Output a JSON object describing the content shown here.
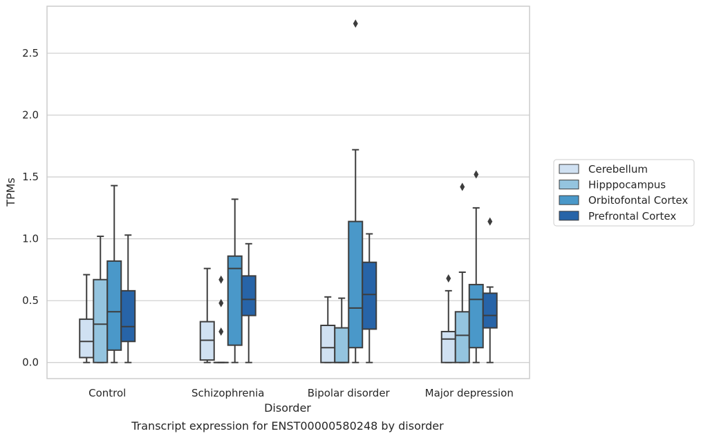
{
  "chart_data": {
    "type": "box",
    "title": "",
    "caption": "Transcript expression for ENST00000580248 by disorder",
    "xlabel": "Disorder",
    "ylabel": "TPMs",
    "ylim": [
      -0.13,
      2.88
    ],
    "yticks": [
      0.0,
      0.5,
      1.0,
      1.5,
      2.0,
      2.5
    ],
    "ytick_labels": [
      "0.0",
      "0.5",
      "1.0",
      "1.5",
      "2.0",
      "2.5"
    ],
    "grid": "horizontal",
    "legend_position": "right",
    "categories": [
      "Control",
      "Schizophrenia",
      "Bipolar disorder",
      "Major depression"
    ],
    "series": [
      {
        "name": "Cerebellum",
        "color": "#d0e1f2",
        "boxes": [
          {
            "whisker_low": 0.0,
            "q1": 0.04,
            "median": 0.17,
            "q3": 0.35,
            "whisker_high": 0.71,
            "outliers": []
          },
          {
            "whisker_low": 0.0,
            "q1": 0.02,
            "median": 0.18,
            "q3": 0.33,
            "whisker_high": 0.76,
            "outliers": []
          },
          {
            "whisker_low": 0.0,
            "q1": 0.0,
            "median": 0.12,
            "q3": 0.3,
            "whisker_high": 0.53,
            "outliers": []
          },
          {
            "whisker_low": 0.0,
            "q1": 0.0,
            "median": 0.19,
            "q3": 0.25,
            "whisker_high": 0.58,
            "outliers": [
              0.68
            ]
          }
        ]
      },
      {
        "name": "Hipppocampus",
        "color": "#94c4df",
        "boxes": [
          {
            "whisker_low": 0.0,
            "q1": 0.0,
            "median": 0.31,
            "q3": 0.67,
            "whisker_high": 1.02,
            "outliers": []
          },
          {
            "whisker_low": 0.0,
            "q1": 0.0,
            "median": 0.0,
            "q3": 0.0,
            "whisker_high": 0.0,
            "outliers": [
              0.25,
              0.48,
              0.67
            ]
          },
          {
            "whisker_low": 0.0,
            "q1": 0.0,
            "median": 0.0,
            "q3": 0.28,
            "whisker_high": 0.52,
            "outliers": []
          },
          {
            "whisker_low": 0.0,
            "q1": 0.0,
            "median": 0.22,
            "q3": 0.41,
            "whisker_high": 0.73,
            "outliers": [
              1.42
            ]
          }
        ]
      },
      {
        "name": "Orbitofontal Cortex",
        "color": "#4a98c9",
        "boxes": [
          {
            "whisker_low": 0.0,
            "q1": 0.1,
            "median": 0.41,
            "q3": 0.82,
            "whisker_high": 1.43,
            "outliers": []
          },
          {
            "whisker_low": 0.0,
            "q1": 0.14,
            "median": 0.76,
            "q3": 0.86,
            "whisker_high": 1.32,
            "outliers": []
          },
          {
            "whisker_low": 0.0,
            "q1": 0.12,
            "median": 0.44,
            "q3": 1.14,
            "whisker_high": 1.72,
            "outliers": [
              2.74
            ]
          },
          {
            "whisker_low": 0.0,
            "q1": 0.12,
            "median": 0.51,
            "q3": 0.63,
            "whisker_high": 1.25,
            "outliers": [
              1.52
            ]
          }
        ]
      },
      {
        "name": "Prefrontal Cortex",
        "color": "#2764a8",
        "boxes": [
          {
            "whisker_low": 0.0,
            "q1": 0.17,
            "median": 0.29,
            "q3": 0.58,
            "whisker_high": 1.03,
            "outliers": []
          },
          {
            "whisker_low": 0.0,
            "q1": 0.38,
            "median": 0.51,
            "q3": 0.7,
            "whisker_high": 0.96,
            "outliers": []
          },
          {
            "whisker_low": 0.0,
            "q1": 0.27,
            "median": 0.55,
            "q3": 0.81,
            "whisker_high": 1.04,
            "outliers": []
          },
          {
            "whisker_low": 0.0,
            "q1": 0.28,
            "median": 0.38,
            "q3": 0.56,
            "whisker_high": 0.61,
            "outliers": [
              1.14
            ]
          }
        ]
      }
    ]
  }
}
